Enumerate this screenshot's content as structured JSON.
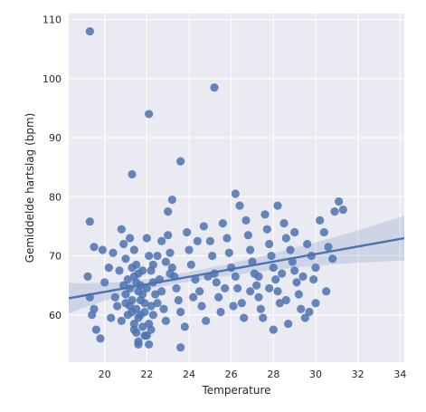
{
  "chart_data": {
    "type": "scatter",
    "title": "",
    "xlabel": "Temperature",
    "ylabel": "Gemiddelde hartslag (bpm)",
    "xlim": [
      18.3,
      34.2
    ],
    "ylim": [
      52,
      111
    ],
    "xticks": [
      20,
      22,
      24,
      26,
      28,
      30,
      32,
      34
    ],
    "yticks": [
      60,
      70,
      80,
      90,
      100,
      110
    ],
    "grid": true,
    "background": "#eaeaf2",
    "point_color": "#4c72b0",
    "regression": {
      "slope": 0.64,
      "intercept": 51.1,
      "ci_at_x_min": 2.6,
      "ci_at_x_center": 0.8,
      "ci_at_x_max": 3.8,
      "x_center": 22.9
    },
    "points": [
      [
        19.3,
        108
      ],
      [
        25.2,
        98.5
      ],
      [
        22.1,
        94
      ],
      [
        23.6,
        86
      ],
      [
        21.3,
        83.8
      ],
      [
        19.3,
        75.8
      ],
      [
        19.5,
        71.5
      ],
      [
        19.9,
        71
      ],
      [
        19.2,
        66.5
      ],
      [
        19.3,
        63
      ],
      [
        19.5,
        61
      ],
      [
        19.4,
        60
      ],
      [
        19.6,
        57.5
      ],
      [
        19.8,
        56
      ],
      [
        20.0,
        65.5
      ],
      [
        20.2,
        68
      ],
      [
        20.4,
        70.5
      ],
      [
        20.5,
        63
      ],
      [
        20.3,
        59.5
      ],
      [
        20.6,
        61.5
      ],
      [
        20.8,
        74.5
      ],
      [
        20.9,
        72
      ],
      [
        21.0,
        69.5
      ],
      [
        21.1,
        66
      ],
      [
        21.2,
        64.5
      ],
      [
        21.0,
        62
      ],
      [
        21.3,
        60.5
      ],
      [
        21.4,
        58.5
      ],
      [
        21.5,
        57
      ],
      [
        21.6,
        55.5
      ],
      [
        21.2,
        73
      ],
      [
        21.4,
        71
      ],
      [
        21.5,
        68.5
      ],
      [
        21.6,
        67
      ],
      [
        21.7,
        65
      ],
      [
        21.8,
        63.5
      ],
      [
        21.9,
        62
      ],
      [
        21.5,
        61
      ],
      [
        21.6,
        59.5
      ],
      [
        21.7,
        60
      ],
      [
        21.8,
        58
      ],
      [
        22.0,
        56.5
      ],
      [
        22.1,
        55
      ],
      [
        22.2,
        57.5
      ],
      [
        22.3,
        60
      ],
      [
        22.0,
        73
      ],
      [
        22.1,
        70
      ],
      [
        22.2,
        67.5
      ],
      [
        22.3,
        65.5
      ],
      [
        22.4,
        63.5
      ],
      [
        22.5,
        62
      ],
      [
        22.6,
        66
      ],
      [
        22.7,
        64
      ],
      [
        22.8,
        61
      ],
      [
        22.9,
        59
      ],
      [
        23.0,
        73.5
      ],
      [
        23.1,
        70.5
      ],
      [
        23.2,
        68
      ],
      [
        23.3,
        66.5
      ],
      [
        23.4,
        64.5
      ],
      [
        23.5,
        62.5
      ],
      [
        23.6,
        60.5
      ],
      [
        23.8,
        58
      ],
      [
        23.6,
        54.5
      ],
      [
        23.2,
        79.5
      ],
      [
        23.0,
        77.5
      ],
      [
        23.9,
        74
      ],
      [
        24.0,
        71
      ],
      [
        24.1,
        68.5
      ],
      [
        24.3,
        66
      ],
      [
        24.5,
        64
      ],
      [
        24.6,
        61.5
      ],
      [
        24.8,
        59
      ],
      [
        24.4,
        72.5
      ],
      [
        24.7,
        75
      ],
      [
        25.0,
        72.5
      ],
      [
        25.1,
        70
      ],
      [
        25.2,
        67
      ],
      [
        25.3,
        65.5
      ],
      [
        25.4,
        63
      ],
      [
        25.5,
        60.5
      ],
      [
        25.6,
        75.5
      ],
      [
        25.8,
        73
      ],
      [
        25.9,
        70.5
      ],
      [
        26.0,
        68
      ],
      [
        26.2,
        66.5
      ],
      [
        26.3,
        64.5
      ],
      [
        26.5,
        62
      ],
      [
        26.6,
        59.5
      ],
      [
        26.2,
        80.5
      ],
      [
        26.4,
        78.5
      ],
      [
        26.7,
        76
      ],
      [
        26.8,
        73.5
      ],
      [
        26.9,
        71
      ],
      [
        27.0,
        69
      ],
      [
        27.1,
        67
      ],
      [
        27.2,
        65
      ],
      [
        27.3,
        63
      ],
      [
        27.4,
        61
      ],
      [
        27.5,
        59.5
      ],
      [
        27.6,
        77
      ],
      [
        27.7,
        74.5
      ],
      [
        27.8,
        72
      ],
      [
        27.9,
        70
      ],
      [
        28.0,
        68
      ],
      [
        28.1,
        66
      ],
      [
        28.2,
        64
      ],
      [
        28.3,
        62
      ],
      [
        28.0,
        57.5
      ],
      [
        28.2,
        78.5
      ],
      [
        28.5,
        75.5
      ],
      [
        28.6,
        73
      ],
      [
        28.8,
        71
      ],
      [
        28.9,
        69
      ],
      [
        29.0,
        67.5
      ],
      [
        29.1,
        65.5
      ],
      [
        29.2,
        63.5
      ],
      [
        29.3,
        61
      ],
      [
        29.5,
        59.5
      ],
      [
        29.0,
        74
      ],
      [
        29.6,
        72
      ],
      [
        29.8,
        70
      ],
      [
        30.0,
        68
      ],
      [
        29.9,
        66
      ],
      [
        30.2,
        76
      ],
      [
        30.4,
        74
      ],
      [
        30.6,
        71.5
      ],
      [
        30.8,
        69.5
      ],
      [
        30.5,
        64
      ],
      [
        30.9,
        77.5
      ],
      [
        31.1,
        79.2
      ],
      [
        31.3,
        77.8
      ],
      [
        30.0,
        62
      ],
      [
        29.7,
        60.5
      ],
      [
        28.7,
        58.5
      ],
      [
        21.4,
        66.5
      ],
      [
        21.6,
        64
      ],
      [
        21.7,
        62.5
      ],
      [
        21.9,
        60.5
      ],
      [
        22.1,
        58.5
      ],
      [
        21.3,
        68
      ],
      [
        21.5,
        65.5
      ],
      [
        21.8,
        67.5
      ],
      [
        22.0,
        64.5
      ],
      [
        22.2,
        61.5
      ],
      [
        21.1,
        60
      ],
      [
        21.3,
        62.5
      ],
      [
        21.4,
        57.5
      ],
      [
        21.6,
        55
      ],
      [
        21.9,
        56.5
      ],
      [
        22.3,
        68.5
      ],
      [
        22.5,
        70
      ],
      [
        22.7,
        72.5
      ],
      [
        22.9,
        69
      ],
      [
        23.1,
        67
      ],
      [
        20.7,
        67.5
      ],
      [
        20.9,
        65
      ],
      [
        21.0,
        63.5
      ],
      [
        21.2,
        61.5
      ],
      [
        20.8,
        59
      ],
      [
        24.2,
        63
      ],
      [
        24.9,
        66.5
      ],
      [
        25.7,
        64.5
      ],
      [
        26.1,
        61.5
      ],
      [
        26.9,
        64
      ],
      [
        27.3,
        66.5
      ],
      [
        27.8,
        64.5
      ],
      [
        28.4,
        67
      ],
      [
        28.6,
        62.5
      ],
      [
        29.4,
        66.5
      ]
    ]
  }
}
